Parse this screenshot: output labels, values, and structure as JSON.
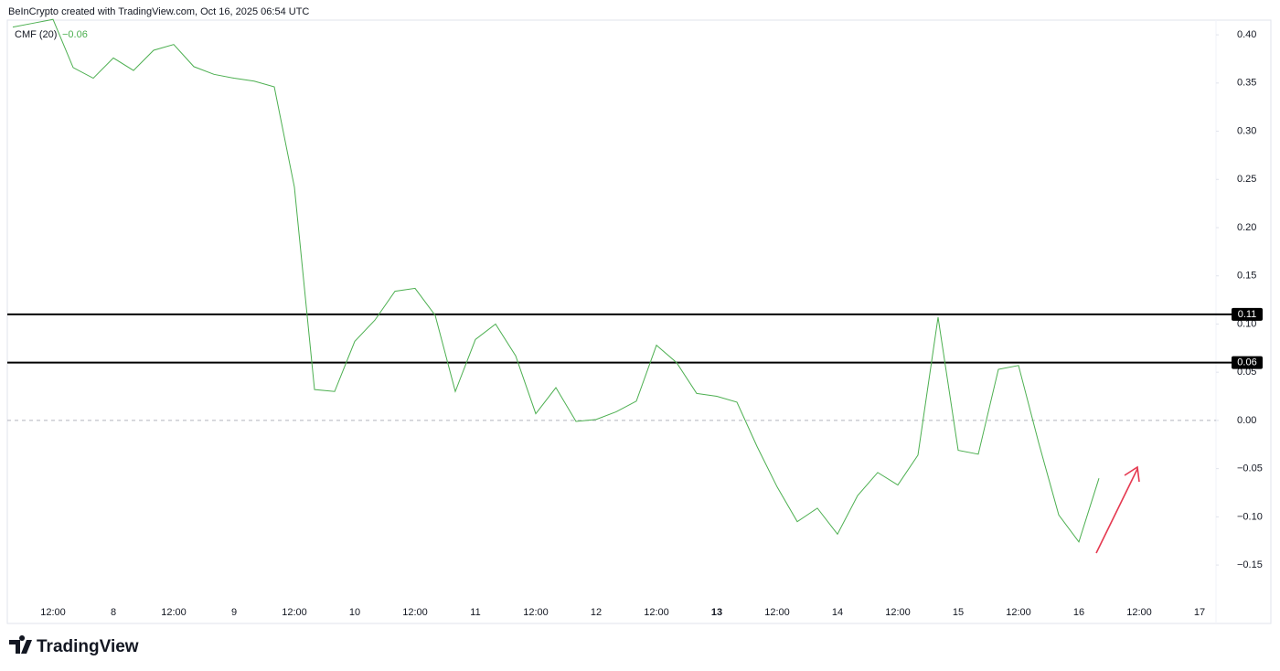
{
  "chart_data": {
    "type": "line",
    "credit": "BeInCrypto created with TradingView.com, Oct 16, 2025 06:54 UTC",
    "brand": "TradingView",
    "legend_value": {
      "value": -0.06,
      "label": "−0.06"
    },
    "categories": [
      null,
      null,
      "12:00",
      null,
      null,
      "8",
      null,
      null,
      "12:00",
      null,
      null,
      "9",
      null,
      null,
      "12:00",
      null,
      null,
      "10",
      null,
      null,
      "12:00",
      null,
      null,
      "11",
      null,
      null,
      "12:00",
      null,
      null,
      "12",
      null,
      null,
      "12:00",
      null,
      null,
      "13",
      null,
      null,
      "12:00",
      null,
      null,
      "14",
      null,
      null,
      "12:00",
      null,
      null,
      "15",
      null,
      null,
      "12:00",
      null,
      null,
      "16",
      null,
      null,
      "12:00",
      null,
      null,
      "17"
    ],
    "series": [
      {
        "name": "CMF (20)",
        "color": "#4caf50",
        "values": [
          0.408,
          0.412,
          0.416,
          0.366,
          0.355,
          0.376,
          0.363,
          0.384,
          0.39,
          0.367,
          0.359,
          0.355,
          0.352,
          0.346,
          0.242,
          0.032,
          0.03,
          0.082,
          0.104,
          0.134,
          0.137,
          0.109,
          0.03,
          0.084,
          0.1,
          0.067,
          0.007,
          0.034,
          -0.001,
          0.001,
          0.009,
          0.02,
          0.078,
          0.06,
          0.028,
          0.025,
          0.019,
          -0.027,
          -0.069,
          -0.105,
          -0.091,
          -0.118,
          -0.078,
          -0.054,
          -0.067,
          -0.036,
          0.107,
          -0.031,
          -0.035,
          0.053,
          0.057,
          -0.023,
          -0.098,
          -0.126,
          -0.06,
          null,
          null,
          null,
          null,
          null
        ]
      }
    ],
    "levels": [
      0.11,
      0.06
    ],
    "ylim": [
      -0.185,
      0.42
    ],
    "yticks": [
      {
        "value": 0.4,
        "label": "0.40"
      },
      {
        "value": 0.35,
        "label": "0.35"
      },
      {
        "value": 0.3,
        "label": "0.30"
      },
      {
        "value": 0.25,
        "label": "0.25"
      },
      {
        "value": 0.2,
        "label": "0.20"
      },
      {
        "value": 0.15,
        "label": "0.15"
      },
      {
        "value": 0.1,
        "label": "0.10"
      },
      {
        "value": 0.05,
        "label": "0.05"
      },
      {
        "value": 0,
        "label": "0.00"
      },
      {
        "value": -0.05,
        "label": "−0.05"
      },
      {
        "value": -0.1,
        "label": "−0.10"
      },
      {
        "value": -0.15,
        "label": "−0.15"
      }
    ],
    "bold_category": "13"
  }
}
